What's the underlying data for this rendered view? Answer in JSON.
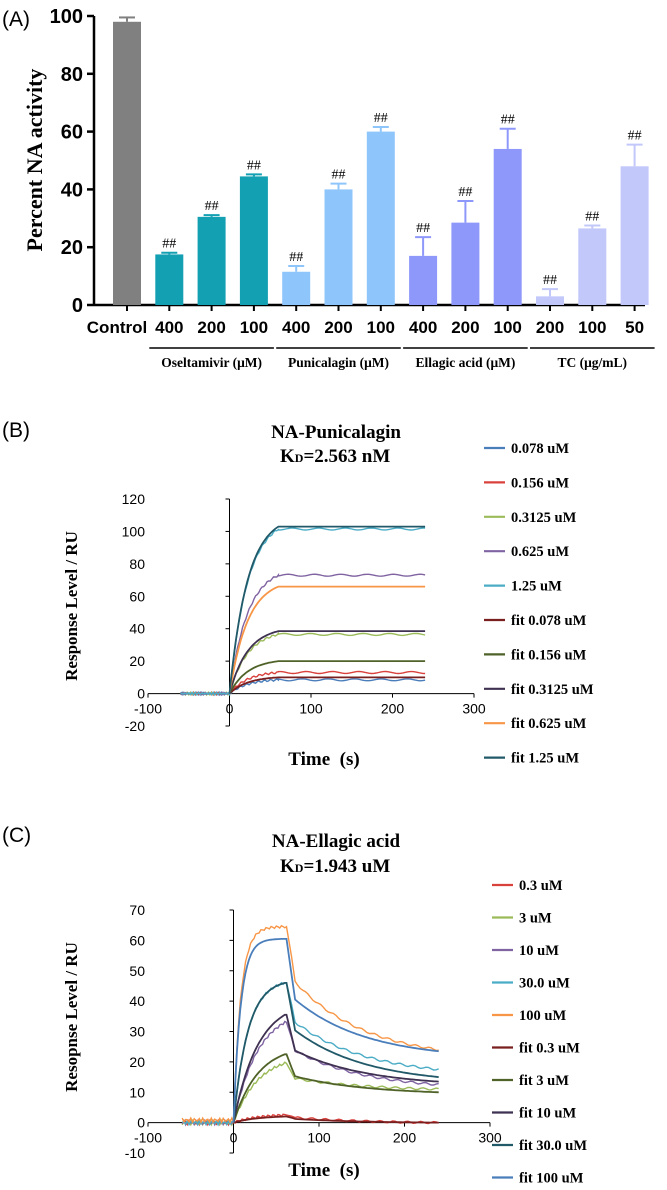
{
  "chart_data": [
    {
      "panel": "(A)",
      "type": "bar",
      "ylabel": "Percent NA activity",
      "ylim": [
        0,
        100
      ],
      "yticks": [
        0,
        20,
        40,
        60,
        80,
        100
      ],
      "categories": [
        "Control",
        "400",
        "200",
        "100",
        "400",
        "200",
        "100",
        "400",
        "200",
        "100",
        "200",
        "100",
        "50"
      ],
      "values": [
        98,
        17.5,
        30.5,
        44.5,
        11.5,
        40,
        60,
        17,
        28.5,
        54,
        3,
        26.5,
        48
      ],
      "errors": [
        1.5,
        0.6,
        0.6,
        0.7,
        2,
        2,
        1.6,
        6.5,
        7.5,
        7,
        2.5,
        1,
        7.5
      ],
      "colors": [
        "#808080",
        "#13a0b3",
        "#13a0b3",
        "#13a0b3",
        "#8ec5fa",
        "#8ec5fa",
        "#8ec5fa",
        "#8e98fa",
        "#8e98fa",
        "#8e98fa",
        "#c2c8fa",
        "#c2c8fa",
        "#c2c8fa"
      ],
      "annotations": [
        "",
        "##",
        "##",
        "##",
        "##",
        "##",
        "##",
        "##",
        "##",
        "##",
        "##",
        "##",
        "##"
      ],
      "groups": [
        {
          "label": "Oseltamivir (μM)",
          "from": 1,
          "to": 3
        },
        {
          "label": "Punicalagin (μM)",
          "from": 4,
          "to": 6
        },
        {
          "label": "Ellagic acid (μM)",
          "from": 7,
          "to": 9
        },
        {
          "label": "TC (μg/mL)",
          "from": 10,
          "to": 12
        }
      ]
    },
    {
      "panel": "(B)",
      "type": "line",
      "title_line1": "NA-Punicalagin",
      "title_k": "K",
      "title_sub": "D",
      "title_rest": "=2.563 nM",
      "xlabel": "Time  (s)",
      "ylabel": "Response Level / RU",
      "xlim": [
        -100,
        300
      ],
      "ylim": [
        -20,
        120
      ],
      "xticks": [
        -100,
        0,
        100,
        200,
        300
      ],
      "yticks": [
        -20,
        0,
        20,
        40,
        60,
        80,
        100,
        120
      ],
      "association_end": 60,
      "end_time": 240,
      "series": [
        {
          "name": "0.078 uM",
          "color": "#4a7ebb",
          "kind": "data",
          "plateau": 8.5
        },
        {
          "name": "0.156 uM",
          "color": "#d9413d",
          "kind": "data",
          "plateau": 13
        },
        {
          "name": "0.3125 uM",
          "color": "#9bbb59",
          "kind": "data",
          "plateau": 36.5
        },
        {
          "name": "0.625 uM",
          "color": "#8064a2",
          "kind": "data",
          "plateau": 73
        },
        {
          "name": "1.25 uM",
          "color": "#4bacc6",
          "kind": "data",
          "plateau": 101.5
        },
        {
          "name": "fit 0.078 uM",
          "color": "#7a1f1f",
          "kind": "fit",
          "plateau": 10
        },
        {
          "name": "fit 0.156 uM",
          "color": "#4f6228",
          "kind": "fit",
          "plateau": 20
        },
        {
          "name": "fit 0.3125 uM",
          "color": "#3f3151",
          "kind": "fit",
          "plateau": 38.5
        },
        {
          "name": "fit 0.625 uM",
          "color": "#f79646",
          "kind": "fit",
          "plateau": 66
        },
        {
          "name": "fit 1.25 uM",
          "color": "#215968",
          "kind": "fit",
          "plateau": 103
        }
      ]
    },
    {
      "panel": "(C)",
      "type": "line",
      "title_line1": "NA-Ellagic acid",
      "title_k": "K",
      "title_sub": "D",
      "title_rest": "=1.943 uM",
      "xlabel": "Time  (s)",
      "ylabel": "Resopnse Level / RU",
      "xlim": [
        -100,
        300
      ],
      "ylim": [
        -10,
        70
      ],
      "xticks": [
        -100,
        0,
        100,
        200,
        300
      ],
      "yticks": [
        -10,
        0,
        10,
        20,
        30,
        40,
        50,
        60,
        70
      ],
      "association_end": 60,
      "end_time": 240,
      "series": [
        {
          "name": "0.3 uM",
          "color": "#d9413d",
          "kind": "data",
          "peak": 2.5,
          "end": 0
        },
        {
          "name": "3 uM",
          "color": "#9bbb59",
          "kind": "data",
          "peak": 19.5,
          "end": 11
        },
        {
          "name": "10 uM",
          "color": "#8064a2",
          "kind": "data",
          "peak": 33,
          "end": 12.5
        },
        {
          "name": "30.0 uM",
          "color": "#4bacc6",
          "kind": "data",
          "peak": 46,
          "end": 17.5
        },
        {
          "name": "100 uM",
          "color": "#f79646",
          "kind": "data",
          "peak": 64.5,
          "end": 24
        },
        {
          "name": "fit 0.3 uM",
          "color": "#7a1f1f",
          "kind": "fit",
          "peak": 2,
          "end": 0
        },
        {
          "name": "fit 3 uM",
          "color": "#4f6228",
          "kind": "fit",
          "peak": 22.5,
          "end": 10
        },
        {
          "name": "fit 10 uM",
          "color": "#3f3151",
          "kind": "fit",
          "peak": 35.5,
          "end": 13.5
        },
        {
          "name": "fit 30.0 uM",
          "color": "#215968",
          "kind": "fit",
          "peak": 46,
          "end": 15
        },
        {
          "name": "fit 100 uM",
          "color": "#4a7ebb",
          "kind": "fit",
          "peak": 60.5,
          "end": 23.5
        }
      ]
    }
  ]
}
